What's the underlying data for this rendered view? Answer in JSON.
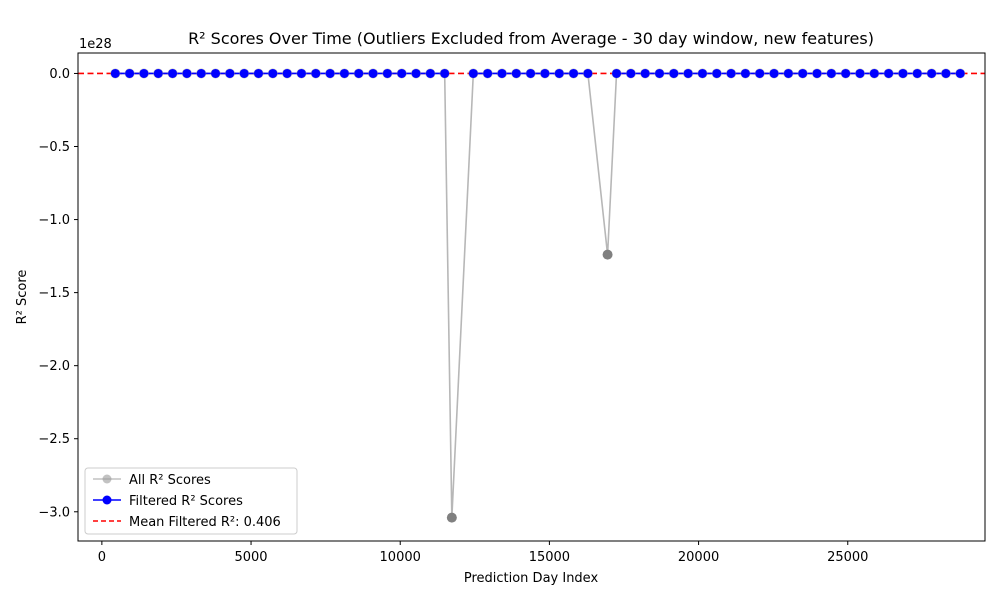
{
  "chart_data": {
    "type": "line",
    "title": "R² Scores Over Time (Outliers Excluded from Average - 30 day window, new features)",
    "xlabel": "Prediction Day Index",
    "ylabel": "R² Score",
    "y_offset_label": "1e28",
    "xlim": [
      -800,
      29600
    ],
    "ylim": [
      -3.2,
      0.14
    ],
    "x_ticks": [
      0,
      5000,
      10000,
      15000,
      20000,
      25000
    ],
    "x_tick_labels": [
      "0",
      "5000",
      "10000",
      "15000",
      "20000",
      "25000"
    ],
    "y_ticks": [
      0.0,
      -0.5,
      -1.0,
      -1.5,
      -2.0,
      -2.5,
      -3.0
    ],
    "y_tick_labels": [
      "0.0",
      "−0.5",
      "−1.0",
      "−1.5",
      "−2.0",
      "−2.5",
      "−3.0"
    ],
    "grid": false,
    "legend_position": "lower-left",
    "x_start": 450,
    "x_step": 480,
    "x_count": 60,
    "outliers": [
      {
        "x": 11730,
        "y": -3.04
      },
      {
        "x": 16950,
        "y": -1.24
      }
    ],
    "series": [
      {
        "name": "All R² Scores",
        "color": "#999999",
        "marker": "circle",
        "role": "all"
      },
      {
        "name": "Filtered R² Scores",
        "color": "#0000ff",
        "marker": "circle",
        "role": "filtered"
      },
      {
        "name": "Mean Filtered R²: 0.406",
        "color": "#ff0000",
        "style": "dashed",
        "value": 0.406,
        "role": "mean"
      }
    ]
  }
}
